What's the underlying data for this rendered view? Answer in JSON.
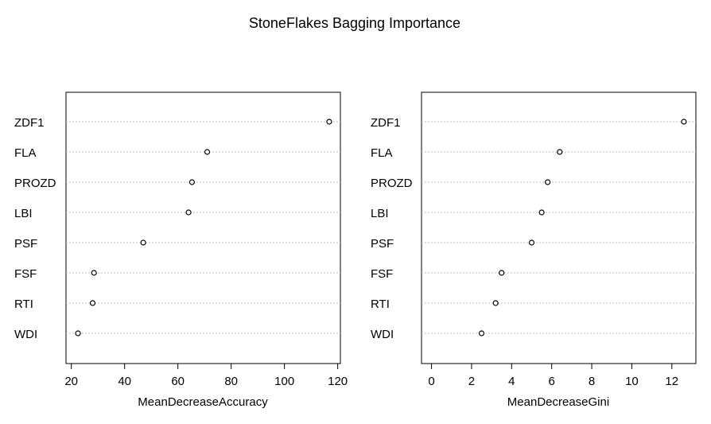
{
  "title": "StoneFlakes Bagging Importance",
  "chart_data": [
    {
      "type": "scatter",
      "subtype": "dotchart",
      "categories": [
        "ZDF1",
        "FLA",
        "PROZD",
        "LBI",
        "PSF",
        "FSF",
        "RTI",
        "WDI"
      ],
      "values": [
        116.8,
        71.0,
        65.3,
        64.0,
        47.0,
        28.5,
        28.0,
        22.5
      ],
      "xlabel": "MeanDecreaseAccuracy",
      "xlim": [
        18,
        121
      ],
      "xticks": [
        20,
        40,
        60,
        80,
        100,
        120
      ],
      "grid": "horizontal dotted",
      "marker": "open circle"
    },
    {
      "type": "scatter",
      "subtype": "dotchart",
      "categories": [
        "ZDF1",
        "FLA",
        "PROZD",
        "LBI",
        "PSF",
        "FSF",
        "RTI",
        "WDI"
      ],
      "values": [
        12.6,
        6.4,
        5.8,
        5.5,
        5.0,
        3.5,
        3.2,
        2.5
      ],
      "xlabel": "MeanDecreaseGini",
      "xlim": [
        -0.5,
        13.2
      ],
      "xticks": [
        0,
        2,
        4,
        6,
        8,
        10,
        12
      ],
      "grid": "horizontal dotted",
      "marker": "open circle"
    }
  ]
}
